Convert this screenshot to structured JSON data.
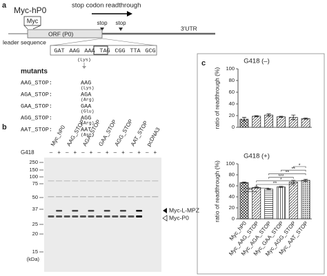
{
  "panel_a": {
    "letter": "a",
    "construct": "Myc-hP0",
    "tag": "Myc",
    "readthrough": "stop codon readthrough",
    "stops": [
      "stop",
      "stop"
    ],
    "orf": "ORF (P0)",
    "utr": "3'UTR",
    "leader": "leader sequence",
    "codons": [
      "GAT",
      "AAG",
      "AAA",
      "TAG",
      "CGG",
      "TTA",
      "GCG"
    ],
    "codon_aa": "(Lys)",
    "mutants_title": "mutants",
    "mutants": [
      {
        "name": "AAG_STOP:",
        "codon": "AAG",
        "aa": "(Lys)"
      },
      {
        "name": "AGA_STOP:",
        "codon": "AGA",
        "aa": "(Arg)"
      },
      {
        "name": "GAA_STOP:",
        "codon": "GAA",
        "aa": "(Glu)"
      },
      {
        "name": "AGG_STOP:",
        "codon": "AGG",
        "aa": "(Arg)"
      },
      {
        "name": "AAT_STOP:",
        "codon": "AAT",
        "aa": "(Asn)"
      }
    ]
  },
  "panel_b": {
    "letter": "b",
    "lanes": [
      "Myc_hP0",
      "AAG_STOP",
      "AGA_STOP",
      "GAA_STOP",
      "AGG_STOP",
      "AAT_STOP",
      "pcDNA3"
    ],
    "treatment": "G418",
    "signs": [
      "–",
      "+",
      "–",
      "+",
      "–",
      "+",
      "–",
      "+",
      "–",
      "+",
      "–",
      "+",
      "–",
      "+"
    ],
    "markers": [
      "250",
      "150",
      "100",
      "75",
      "50",
      "37",
      "25",
      "20",
      "15"
    ],
    "marker_unit": "(kDa)",
    "band_labels": [
      "Myc-L-MPZ",
      "Myc-P0"
    ]
  },
  "panel_c": {
    "letter": "c"
  },
  "chart_data": [
    {
      "type": "bar",
      "title": "G418 (–)",
      "y_label": "ratio of readthrough (%)",
      "categories": [
        "Myc_hP0",
        "Myc_AAG_STOP",
        "Myc_AGA_STOP",
        "Myc_GAA_STOP",
        "Myc_AGG_STOP",
        "Myc_AAT_STOP"
      ],
      "values": [
        14,
        19,
        21,
        18,
        17,
        15
      ],
      "errors": [
        3,
        1,
        2,
        1,
        4,
        1
      ],
      "patterns": [
        "cross",
        "diag",
        "diag",
        "diag",
        "diag",
        "diag"
      ],
      "ylim": [
        0,
        100
      ],
      "yticks": [
        0,
        20,
        40,
        60,
        80,
        100
      ]
    },
    {
      "type": "bar",
      "title": "G418 (+)",
      "y_label": "ratio of readthrough (%)",
      "categories": [
        "Myc_hP0",
        "Myc_AAG_STOP",
        "Myc_AGA_STOP",
        "Myc_GAA_STOP",
        "Myc_AGG_STOP",
        "Myc_AAT_STOP"
      ],
      "values": [
        66,
        57,
        54,
        58,
        67,
        70
      ],
      "errors": [
        1,
        1,
        1,
        1,
        3,
        2
      ],
      "patterns": [
        "cross",
        "diag",
        "hlines",
        "vlines",
        "diag",
        "dots"
      ],
      "ylim": [
        0,
        100
      ],
      "yticks": [
        0,
        20,
        40,
        60,
        80,
        100
      ],
      "annotations": [
        {
          "label": "**",
          "from": 0,
          "to": 1
        },
        {
          "label": "*",
          "from": 0,
          "to": 2
        },
        {
          "label": "**",
          "from": 1,
          "to": 4
        },
        {
          "label": "*",
          "from": 1,
          "to": 5
        },
        {
          "label": "***",
          "from": 2,
          "to": 4
        },
        {
          "label": "**",
          "from": 2,
          "to": 5
        },
        {
          "label": "**",
          "from": 3,
          "to": 5
        },
        {
          "label": "*",
          "from": 4,
          "to": 5
        }
      ]
    }
  ]
}
